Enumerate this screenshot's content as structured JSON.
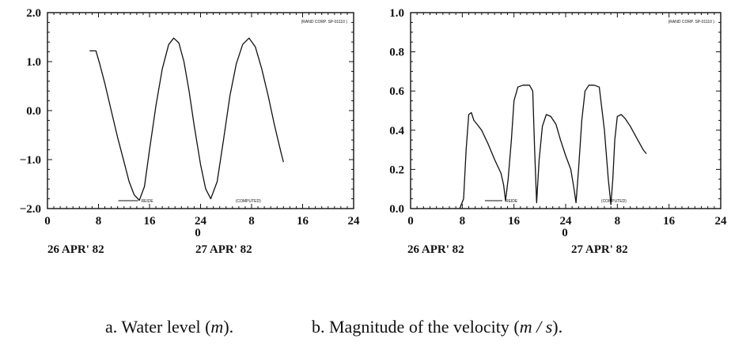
{
  "chart_data": [
    {
      "type": "line",
      "x_tick_labels": [
        "0",
        "8",
        "16",
        "24",
        "8",
        "16",
        "24"
      ],
      "x_secondary_label": "0",
      "date_labels": [
        "26 APR' 82",
        "27 APR' 82"
      ],
      "y_tick_labels": [
        "2.0",
        "1.0",
        "0.0",
        "−1.0",
        "−2.0"
      ],
      "ylim": [
        -2.0,
        2.0
      ],
      "xlim": [
        0,
        48
      ],
      "legend": [
        "REIDE",
        "(COMPUTED)"
      ],
      "stamp": "(RAND CORP.  SP-01110  )",
      "series": [
        {
          "name": "(COMPUTED)",
          "x": [
            6.6,
            7.6,
            8.2,
            9.0,
            10.0,
            11.0,
            12.0,
            12.8,
            13.6,
            14.4,
            15.2,
            16.0,
            17.0,
            18.0,
            19.0,
            19.8,
            20.6,
            21.4,
            22.2,
            23.0,
            24.0,
            24.8,
            25.6,
            26.6,
            27.6,
            28.6,
            29.6,
            30.6,
            31.6,
            32.6,
            33.6,
            34.6,
            35.6,
            36.6,
            37.0
          ],
          "y": [
            1.22,
            1.22,
            0.95,
            0.55,
            0.0,
            -0.55,
            -1.05,
            -1.45,
            -1.72,
            -1.83,
            -1.55,
            -0.8,
            0.1,
            0.85,
            1.35,
            1.48,
            1.38,
            1.0,
            0.4,
            -0.3,
            -1.1,
            -1.6,
            -1.8,
            -1.45,
            -0.6,
            0.3,
            0.95,
            1.35,
            1.48,
            1.3,
            0.85,
            0.3,
            -0.3,
            -0.85,
            -1.05
          ]
        }
      ]
    },
    {
      "type": "line",
      "x_tick_labels": [
        "0",
        "8",
        "16",
        "24",
        "8",
        "16",
        "24"
      ],
      "x_secondary_label": "0",
      "date_labels": [
        "26 APR' 82",
        "27 APR' 82"
      ],
      "y_tick_labels": [
        "1.0",
        "0.8",
        "0.6",
        "0.4",
        "0.2",
        "0.0"
      ],
      "ylim": [
        0.0,
        1.0
      ],
      "xlim": [
        0,
        48
      ],
      "legend": [
        "REIDE",
        "(COMPUTED)"
      ],
      "stamp": "(RAND CORP.  SP-01110  )",
      "series": [
        {
          "name": "(COMPUTED)",
          "x": [
            7.6,
            8.2,
            8.6,
            9.0,
            9.4,
            9.8,
            10.3,
            11.0,
            12.0,
            13.0,
            14.0,
            14.4,
            14.7,
            15.1,
            15.6,
            16.0,
            16.6,
            17.4,
            18.4,
            18.9,
            19.2,
            19.5,
            19.9,
            20.4,
            21.0,
            21.7,
            22.5,
            23.2,
            24.0,
            24.8,
            25.3,
            25.6,
            26.0,
            26.5,
            27.0,
            27.6,
            28.4,
            29.2,
            30.0,
            30.6,
            31.0,
            31.3,
            31.6,
            32.0,
            32.6,
            33.2,
            34.0,
            35.0,
            36.0,
            36.5
          ],
          "y": [
            0.0,
            0.05,
            0.3,
            0.48,
            0.49,
            0.45,
            0.43,
            0.4,
            0.33,
            0.25,
            0.18,
            0.12,
            0.04,
            0.15,
            0.35,
            0.55,
            0.62,
            0.63,
            0.63,
            0.6,
            0.3,
            0.03,
            0.25,
            0.42,
            0.48,
            0.47,
            0.43,
            0.35,
            0.27,
            0.2,
            0.1,
            0.03,
            0.2,
            0.45,
            0.6,
            0.63,
            0.63,
            0.62,
            0.4,
            0.15,
            0.02,
            0.15,
            0.35,
            0.47,
            0.48,
            0.46,
            0.42,
            0.36,
            0.3,
            0.28
          ]
        }
      ]
    }
  ],
  "captions": {
    "a": "a. Water level (",
    "a_unit": "m",
    "a_end": ").",
    "b": "b. Magnitude of the velocity (",
    "b_unit": "m / s",
    "b_end": ")."
  }
}
